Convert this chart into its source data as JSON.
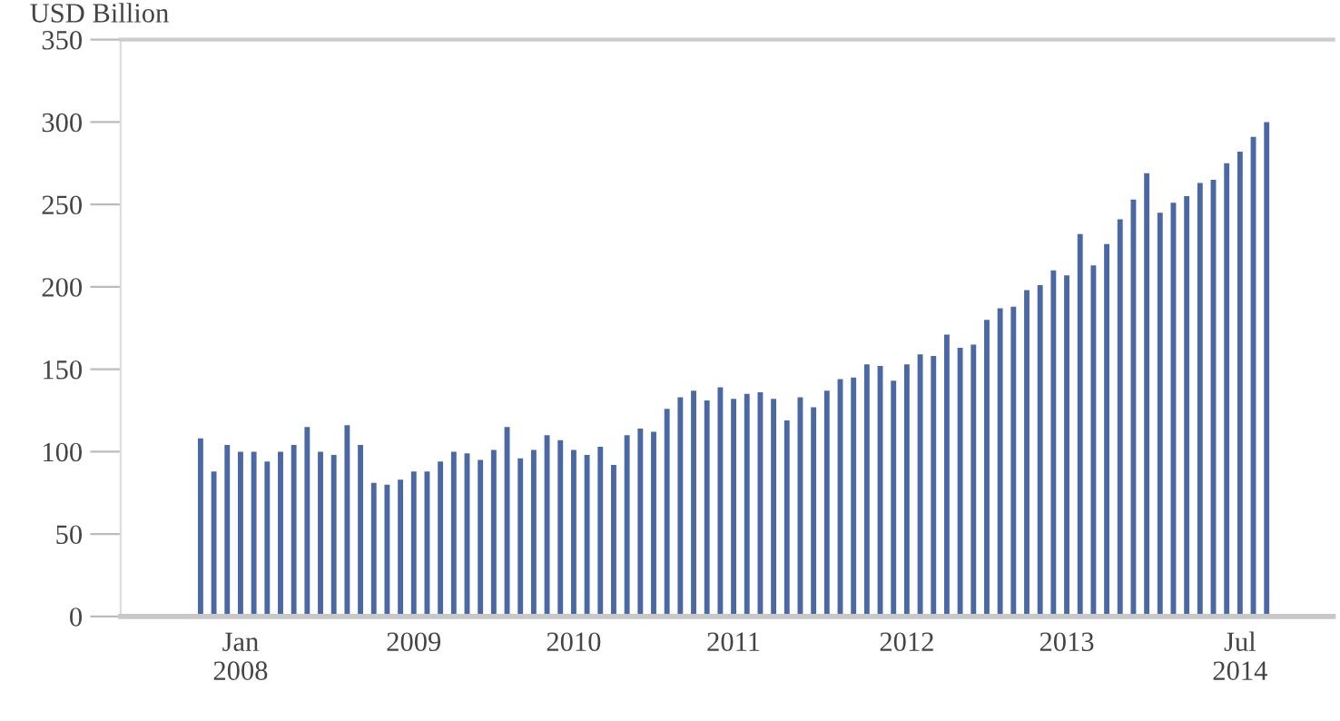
{
  "chart_data": {
    "type": "bar",
    "ylabel": "USD Billion",
    "categories": [
      null,
      null,
      null,
      "Jan\n2008",
      null,
      null,
      null,
      null,
      null,
      null,
      null,
      null,
      null,
      null,
      null,
      null,
      "2009",
      null,
      null,
      null,
      null,
      null,
      null,
      null,
      null,
      null,
      null,
      null,
      "2010",
      null,
      null,
      null,
      null,
      null,
      null,
      null,
      null,
      null,
      null,
      null,
      "2011",
      null,
      null,
      null,
      null,
      null,
      null,
      null,
      null,
      null,
      null,
      null,
      null,
      "2012",
      null,
      null,
      null,
      null,
      null,
      null,
      null,
      null,
      null,
      null,
      null,
      "2013",
      null,
      null,
      null,
      null,
      null,
      null,
      null,
      null,
      null,
      null,
      null,
      null,
      "Jul\n2014",
      null,
      null
    ],
    "values": [
      108,
      88,
      104,
      100,
      100,
      94,
      100,
      104,
      115,
      100,
      98,
      116,
      104,
      81,
      80,
      83,
      88,
      88,
      94,
      100,
      99,
      95,
      101,
      115,
      96,
      101,
      110,
      107,
      101,
      98,
      103,
      92,
      110,
      114,
      112,
      126,
      133,
      137,
      131,
      139,
      132,
      135,
      136,
      132,
      119,
      133,
      127,
      137,
      144,
      145,
      153,
      152,
      143,
      153,
      159,
      158,
      171,
      163,
      165,
      180,
      187,
      188,
      198,
      201,
      210,
      207,
      232,
      213,
      226,
      241,
      253,
      269,
      245,
      251,
      255,
      263,
      265,
      275,
      282,
      291,
      300
    ],
    "color": "#4a68a3",
    "ylim": [
      0,
      350
    ],
    "yticks": [
      0,
      50,
      100,
      150,
      200,
      250,
      300,
      350
    ],
    "grid": false
  }
}
